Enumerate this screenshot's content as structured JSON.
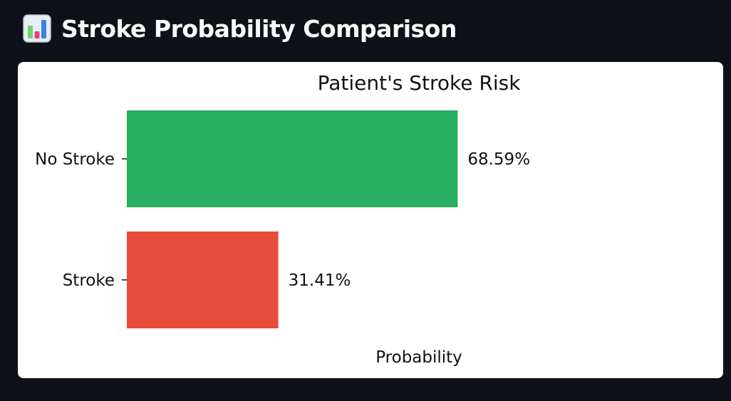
{
  "header": {
    "title": "Stroke Probability Comparison",
    "icon": "bar-chart-icon"
  },
  "chart_data": {
    "type": "bar",
    "orientation": "horizontal",
    "title": "Patient's Stroke Risk",
    "xlabel": "Probability",
    "ylabel": "",
    "categories": [
      "No Stroke",
      "Stroke"
    ],
    "values": [
      0.6859,
      0.3141
    ],
    "value_labels": [
      "68.59%",
      "31.41%"
    ],
    "colors": [
      "#27ae60",
      "#e74c3c"
    ],
    "xlim": [
      0,
      1
    ],
    "grid": false,
    "legend": "none"
  }
}
